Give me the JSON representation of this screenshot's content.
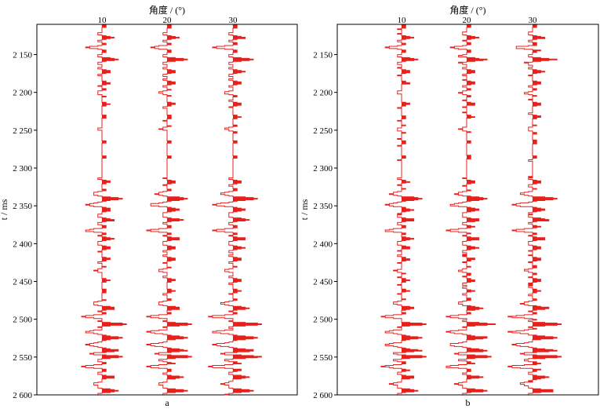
{
  "chart_data": [
    {
      "type": "seismic-wiggle",
      "panel_label": "a",
      "xlabel": "角度 / (°)",
      "ylabel": "t / ms",
      "ylim": [
        2110,
        2600
      ],
      "y_tick_labels": [
        "2 150",
        "2 200",
        "2 250",
        "2 300",
        "2 350",
        "2 400",
        "2 450",
        "2 500",
        "2 550",
        "2 600"
      ],
      "y_ticks": [
        2150,
        2200,
        2250,
        2300,
        2350,
        2400,
        2450,
        2500,
        2550,
        2600
      ],
      "x_tick_labels": [
        "10",
        "20",
        "30"
      ],
      "x_ticks": [
        10,
        20,
        30
      ],
      "trace_color": "#e8201c",
      "events_ms": [
        {
          "t": 2112,
          "a": 0.25
        },
        {
          "t": 2127,
          "a": 0.55
        },
        {
          "t": 2140,
          "a": -0.8
        },
        {
          "t": 2156,
          "a": 0.9
        },
        {
          "t": 2172,
          "a": 0.5
        },
        {
          "t": 2187,
          "a": 0.4
        },
        {
          "t": 2200,
          "a": -0.35
        },
        {
          "t": 2215,
          "a": 0.35
        },
        {
          "t": 2232,
          "a": 0.3
        },
        {
          "t": 2248,
          "a": -0.3
        },
        {
          "t": 2265,
          "a": 0.2
        },
        {
          "t": 2285,
          "a": 0.2
        },
        {
          "t": 2318,
          "a": 0.4
        },
        {
          "t": 2333,
          "a": -0.4
        },
        {
          "t": 2340,
          "a": 1.0
        },
        {
          "t": 2348,
          "a": -0.8
        },
        {
          "t": 2355,
          "a": 0.45
        },
        {
          "t": 2368,
          "a": 0.7
        },
        {
          "t": 2382,
          "a": -0.95
        },
        {
          "t": 2393,
          "a": 0.6
        },
        {
          "t": 2405,
          "a": 0.45
        },
        {
          "t": 2420,
          "a": 0.4
        },
        {
          "t": 2435,
          "a": -0.35
        },
        {
          "t": 2448,
          "a": 0.35
        },
        {
          "t": 2462,
          "a": 0.3
        },
        {
          "t": 2478,
          "a": -0.4
        },
        {
          "t": 2485,
          "a": 0.65
        },
        {
          "t": 2496,
          "a": -1.0
        },
        {
          "t": 2506,
          "a": 1.25
        },
        {
          "t": 2516,
          "a": -0.9
        },
        {
          "t": 2524,
          "a": 1.0
        },
        {
          "t": 2533,
          "a": -0.85
        },
        {
          "t": 2541,
          "a": 0.95
        },
        {
          "t": 2549,
          "a": 1.2
        },
        {
          "t": 2562,
          "a": -1.0
        },
        {
          "t": 2576,
          "a": 0.7
        },
        {
          "t": 2585,
          "a": -0.5
        },
        {
          "t": 2594,
          "a": 0.9
        }
      ]
    },
    {
      "type": "seismic-wiggle",
      "panel_label": "b",
      "xlabel": "角度 / (°)",
      "ylabel": "t / ms",
      "ylim": [
        2110,
        2600
      ],
      "y_tick_labels": [
        "2 150",
        "2 200",
        "2 250",
        "2 300",
        "2 350",
        "2 400",
        "2 450",
        "2 500",
        "2 550",
        "2 600"
      ],
      "y_ticks": [
        2150,
        2200,
        2250,
        2300,
        2350,
        2400,
        2450,
        2500,
        2550,
        2600
      ],
      "x_tick_labels": [
        "10",
        "20",
        "30"
      ],
      "x_ticks": [
        10,
        20,
        30
      ],
      "trace_color": "#e8201c",
      "events_ms": [
        {
          "t": 2112,
          "a": 0.25
        },
        {
          "t": 2127,
          "a": 0.55
        },
        {
          "t": 2140,
          "a": -0.8
        },
        {
          "t": 2156,
          "a": 0.9
        },
        {
          "t": 2172,
          "a": 0.5
        },
        {
          "t": 2187,
          "a": 0.4
        },
        {
          "t": 2200,
          "a": -0.35
        },
        {
          "t": 2215,
          "a": 0.35
        },
        {
          "t": 2232,
          "a": 0.3
        },
        {
          "t": 2248,
          "a": -0.3
        },
        {
          "t": 2265,
          "a": 0.25
        },
        {
          "t": 2285,
          "a": 0.25
        },
        {
          "t": 2318,
          "a": 0.4
        },
        {
          "t": 2333,
          "a": -0.4
        },
        {
          "t": 2340,
          "a": 1.0
        },
        {
          "t": 2348,
          "a": -0.8
        },
        {
          "t": 2355,
          "a": 0.45
        },
        {
          "t": 2368,
          "a": 0.7
        },
        {
          "t": 2382,
          "a": -0.95
        },
        {
          "t": 2393,
          "a": 0.6
        },
        {
          "t": 2405,
          "a": 0.45
        },
        {
          "t": 2420,
          "a": 0.4
        },
        {
          "t": 2435,
          "a": -0.35
        },
        {
          "t": 2448,
          "a": 0.35
        },
        {
          "t": 2462,
          "a": 0.3
        },
        {
          "t": 2478,
          "a": -0.4
        },
        {
          "t": 2485,
          "a": 0.65
        },
        {
          "t": 2496,
          "a": -1.0
        },
        {
          "t": 2506,
          "a": 1.25
        },
        {
          "t": 2516,
          "a": -0.9
        },
        {
          "t": 2524,
          "a": 1.0
        },
        {
          "t": 2533,
          "a": -0.85
        },
        {
          "t": 2541,
          "a": 0.95
        },
        {
          "t": 2549,
          "a": 1.2
        },
        {
          "t": 2562,
          "a": -1.0
        },
        {
          "t": 2576,
          "a": 0.7
        },
        {
          "t": 2585,
          "a": -0.5
        },
        {
          "t": 2594,
          "a": 0.9
        }
      ]
    }
  ]
}
